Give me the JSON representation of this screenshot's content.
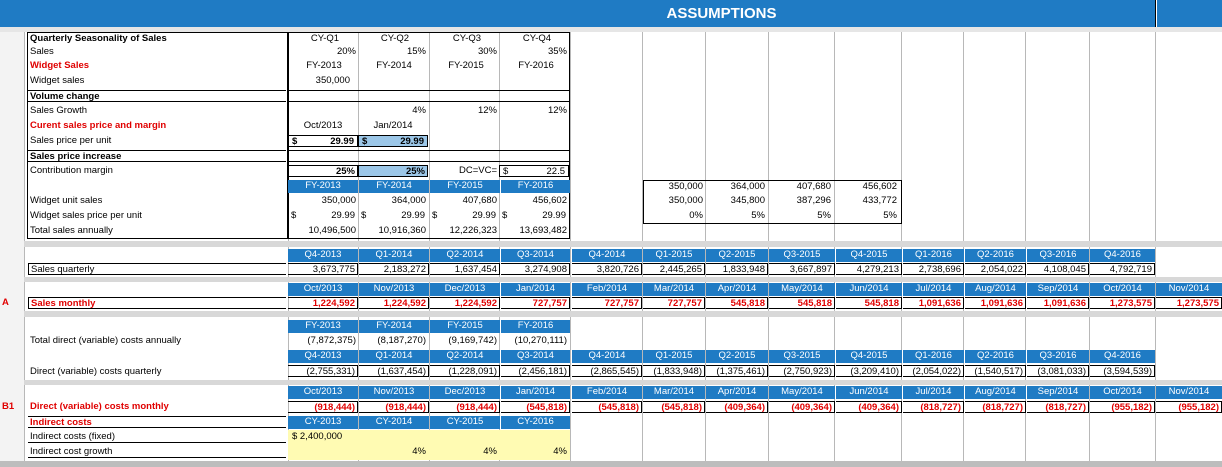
{
  "title": "ASSUMPTIONS",
  "quarter_hdr": [
    "CY-Q1",
    "CY-Q2",
    "CY-Q3",
    "CY-Q4"
  ],
  "labels": {
    "qs": "Quarterly Seasonality of Sales",
    "sales": "Sales",
    "widget_sales": "Widget Sales",
    "widget_sales2": "Widget sales",
    "vol_change": "Volume change",
    "sales_growth": "Sales Growth",
    "cur_price": "Curent sales price and margin",
    "price_per_unit": "Sales price per unit",
    "price_incr": "Sales price increase",
    "contrib": "Contribution margin",
    "w_unit_sales": "Widget unit sales",
    "w_price": "Widget sales price per unit",
    "total_sales": "Total sales annually",
    "sales_quarterly": "Sales quarterly",
    "sales_monthly": "Sales monthly",
    "tdc_annual": "Total direct (variable) costs annually",
    "dc_quarterly": "Direct (variable) costs quarterly",
    "dc_monthly": "Direct (variable) costs monthly",
    "indirect": "Indirect costs",
    "indirect_fixed": "Indirect costs (fixed)",
    "indirect_growth": "Indirect cost growth",
    "mark_a": "A",
    "mark_b1": "B1"
  },
  "seasonality": [
    "20%",
    "15%",
    "30%",
    "35%"
  ],
  "fy_short": [
    "FY-2013",
    "FY-2014",
    "FY-2015",
    "FY-2016"
  ],
  "widget_sales_val": "350,000",
  "growth": [
    "4%",
    "12%",
    "12%"
  ],
  "price_dates": [
    "Oct/2013",
    "Jan/2014"
  ],
  "price_vals": {
    "cur": "$",
    "a": "29.99",
    "b": "29.99"
  },
  "contrib": {
    "a": "25%",
    "b": "25%",
    "dcvc": "DC=VC=",
    "cur": "$",
    "val": "22.5"
  },
  "fy_hdr": [
    "FY-2013",
    "FY-2014",
    "FY-2015",
    "FY-2016"
  ],
  "unit_sales": [
    "350,000",
    "364,000",
    "407,680",
    "456,602"
  ],
  "price": [
    "29.99",
    "29.99",
    "29.99",
    "29.99"
  ],
  "total_sales": [
    "10,496,500",
    "10,916,360",
    "12,226,323",
    "13,693,482"
  ],
  "side": {
    "r1": [
      "350,000",
      "364,000",
      "407,680",
      "456,602"
    ],
    "r2": [
      "350,000",
      "345,800",
      "387,296",
      "433,772"
    ],
    "r3": [
      "0%",
      "5%",
      "5%",
      "5%"
    ]
  },
  "q_hdr": [
    "Q4-2013",
    "Q1-2014",
    "Q2-2014",
    "Q3-2014",
    "Q4-2014",
    "Q1-2015",
    "Q2-2015",
    "Q3-2015",
    "Q4-2015",
    "Q1-2016",
    "Q2-2016",
    "Q3-2016",
    "Q4-2016"
  ],
  "sales_q": [
    "3,673,775",
    "2,183,272",
    "1,637,454",
    "3,274,908",
    "3,820,726",
    "2,445,265",
    "1,833,948",
    "3,667,897",
    "4,279,213",
    "2,738,696",
    "2,054,022",
    "4,108,045",
    "4,792,719"
  ],
  "m_hdr": [
    "Oct/2013",
    "Nov/2013",
    "Dec/2013",
    "Jan/2014",
    "Feb/2014",
    "Mar/2014",
    "Apr/2014",
    "May/2014",
    "Jun/2014",
    "Jul/2014",
    "Aug/2014",
    "Sep/2014",
    "Oct/2014",
    "Nov/2014"
  ],
  "sales_m": [
    "1,224,592",
    "1,224,592",
    "1,224,592",
    "727,757",
    "727,757",
    "727,757",
    "545,818",
    "545,818",
    "545,818",
    "1,091,636",
    "1,091,636",
    "1,091,636",
    "1,273,575",
    "1,273,575"
  ],
  "tdc": [
    "(7,872,375)",
    "(8,187,270)",
    "(9,169,742)",
    "(10,270,111)"
  ],
  "dc_q": [
    "(2,755,331)",
    "(1,637,454)",
    "(1,228,091)",
    "(2,456,181)",
    "(2,865,545)",
    "(1,833,948)",
    "(1,375,461)",
    "(2,750,923)",
    "(3,209,410)",
    "(2,054,022)",
    "(1,540,517)",
    "(3,081,033)",
    "(3,594,539)"
  ],
  "dc_m": [
    "(918,444)",
    "(918,444)",
    "(918,444)",
    "(545,818)",
    "(545,818)",
    "(545,818)",
    "(409,364)",
    "(409,364)",
    "(409,364)",
    "(818,727)",
    "(818,727)",
    "(818,727)",
    "(955,182)",
    "(955,182)"
  ],
  "cy_hdr": [
    "CY-2013",
    "CY-2014",
    "CY-2015",
    "CY-2016"
  ],
  "indirect_fixed": "$ 2,400,000",
  "indirect_growth": [
    "4%",
    "4%",
    "4%"
  ],
  "colors": {
    "header_blue": "#1f7bc4",
    "title_bar": "#1f7bc4",
    "label_red": "#e00000",
    "yellow_fill": "#fffbb3"
  }
}
